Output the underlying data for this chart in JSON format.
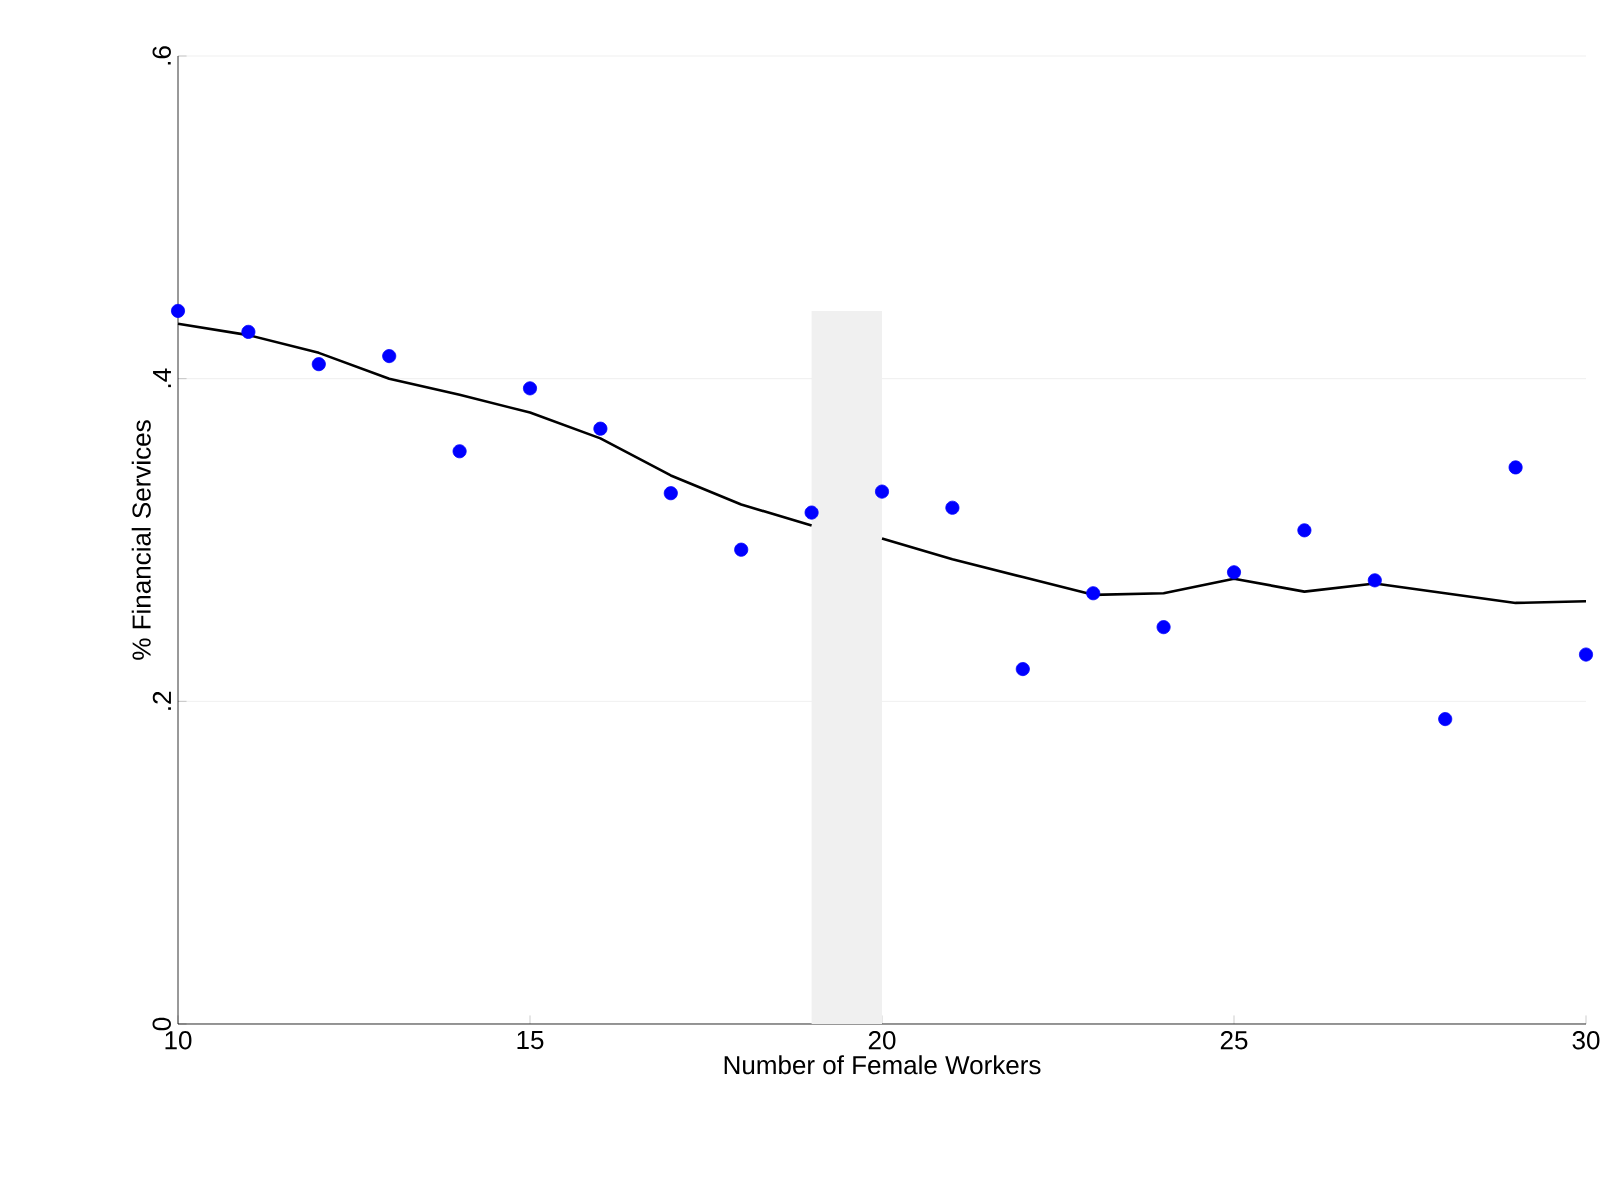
{
  "chart_data": {
    "type": "scatter",
    "xlabel": "Number of Female Workers",
    "ylabel": "% Financial Services",
    "xlim": [
      10,
      30
    ],
    "ylim": [
      0,
      0.6
    ],
    "xticks": [
      10,
      15,
      20,
      25,
      30
    ],
    "yticks": [
      0,
      {
        "value": 0.2,
        "label": ".2"
      },
      {
        "value": 0.4,
        "label": ".4"
      },
      {
        "value": 0.6,
        "label": ".6"
      }
    ],
    "grid": "y",
    "bands": [
      {
        "axis": "x",
        "from": 19,
        "to": 20,
        "color": "#f0f0f0"
      }
    ],
    "series": [
      {
        "color": "#0000ff",
        "marker": "circle",
        "x": [
          10,
          11,
          12,
          13,
          14,
          15,
          16,
          17,
          18,
          19,
          20,
          21,
          22,
          23,
          24,
          25,
          26,
          27,
          28,
          29,
          30
        ],
        "values": [
          0.442,
          0.429,
          0.409,
          0.414,
          0.355,
          0.394,
          0.369,
          0.329,
          0.294,
          0.317,
          0.33,
          0.32,
          0.22,
          0.267,
          0.246,
          0.28,
          0.306,
          0.275,
          0.189,
          0.345,
          0.229
        ]
      },
      {
        "type": "line",
        "color": "#000000",
        "x": [
          10,
          11,
          12,
          13,
          14,
          15,
          16,
          17,
          18,
          19
        ],
        "values": [
          0.434,
          0.427,
          0.416,
          0.4,
          0.39,
          0.379,
          0.363,
          0.34,
          0.322,
          0.309
        ]
      },
      {
        "type": "line",
        "color": "#000000",
        "x": [
          20,
          21,
          22,
          23,
          24,
          25,
          26,
          27,
          28,
          29,
          30
        ],
        "values": [
          0.301,
          0.288,
          0.277,
          0.266,
          0.267,
          0.276,
          0.268,
          0.273,
          0.267,
          0.261,
          0.262
        ]
      }
    ]
  }
}
